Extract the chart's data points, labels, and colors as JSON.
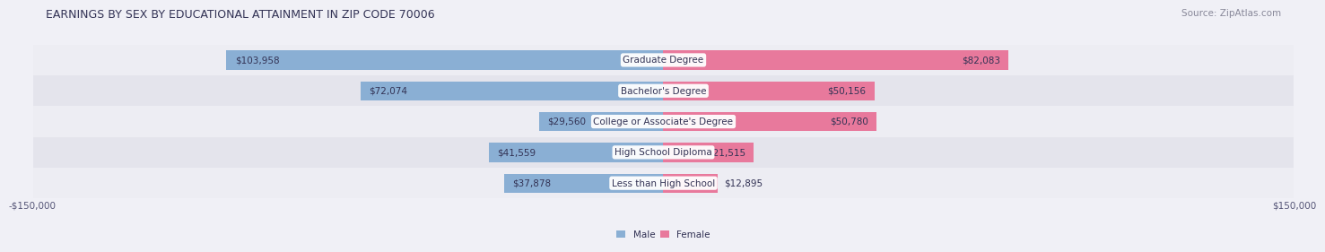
{
  "title": "EARNINGS BY SEX BY EDUCATIONAL ATTAINMENT IN ZIP CODE 70006",
  "source": "Source: ZipAtlas.com",
  "categories": [
    "Less than High School",
    "High School Diploma",
    "College or Associate's Degree",
    "Bachelor's Degree",
    "Graduate Degree"
  ],
  "male_values": [
    37878,
    41559,
    29560,
    72074,
    103958
  ],
  "female_values": [
    12895,
    21515,
    50780,
    50156,
    82083
  ],
  "male_color": "#8aafd4",
  "female_color": "#e8799c",
  "row_bg_colors": [
    "#ededf3",
    "#e4e4ec"
  ],
  "max_value": 150000,
  "x_tick_label_left": "-$150,000",
  "x_tick_label_right": "$150,000",
  "background_color": "#f0f0f6",
  "title_fontsize": 9,
  "source_fontsize": 7.5,
  "label_fontsize": 7.5,
  "category_fontsize": 7.5
}
